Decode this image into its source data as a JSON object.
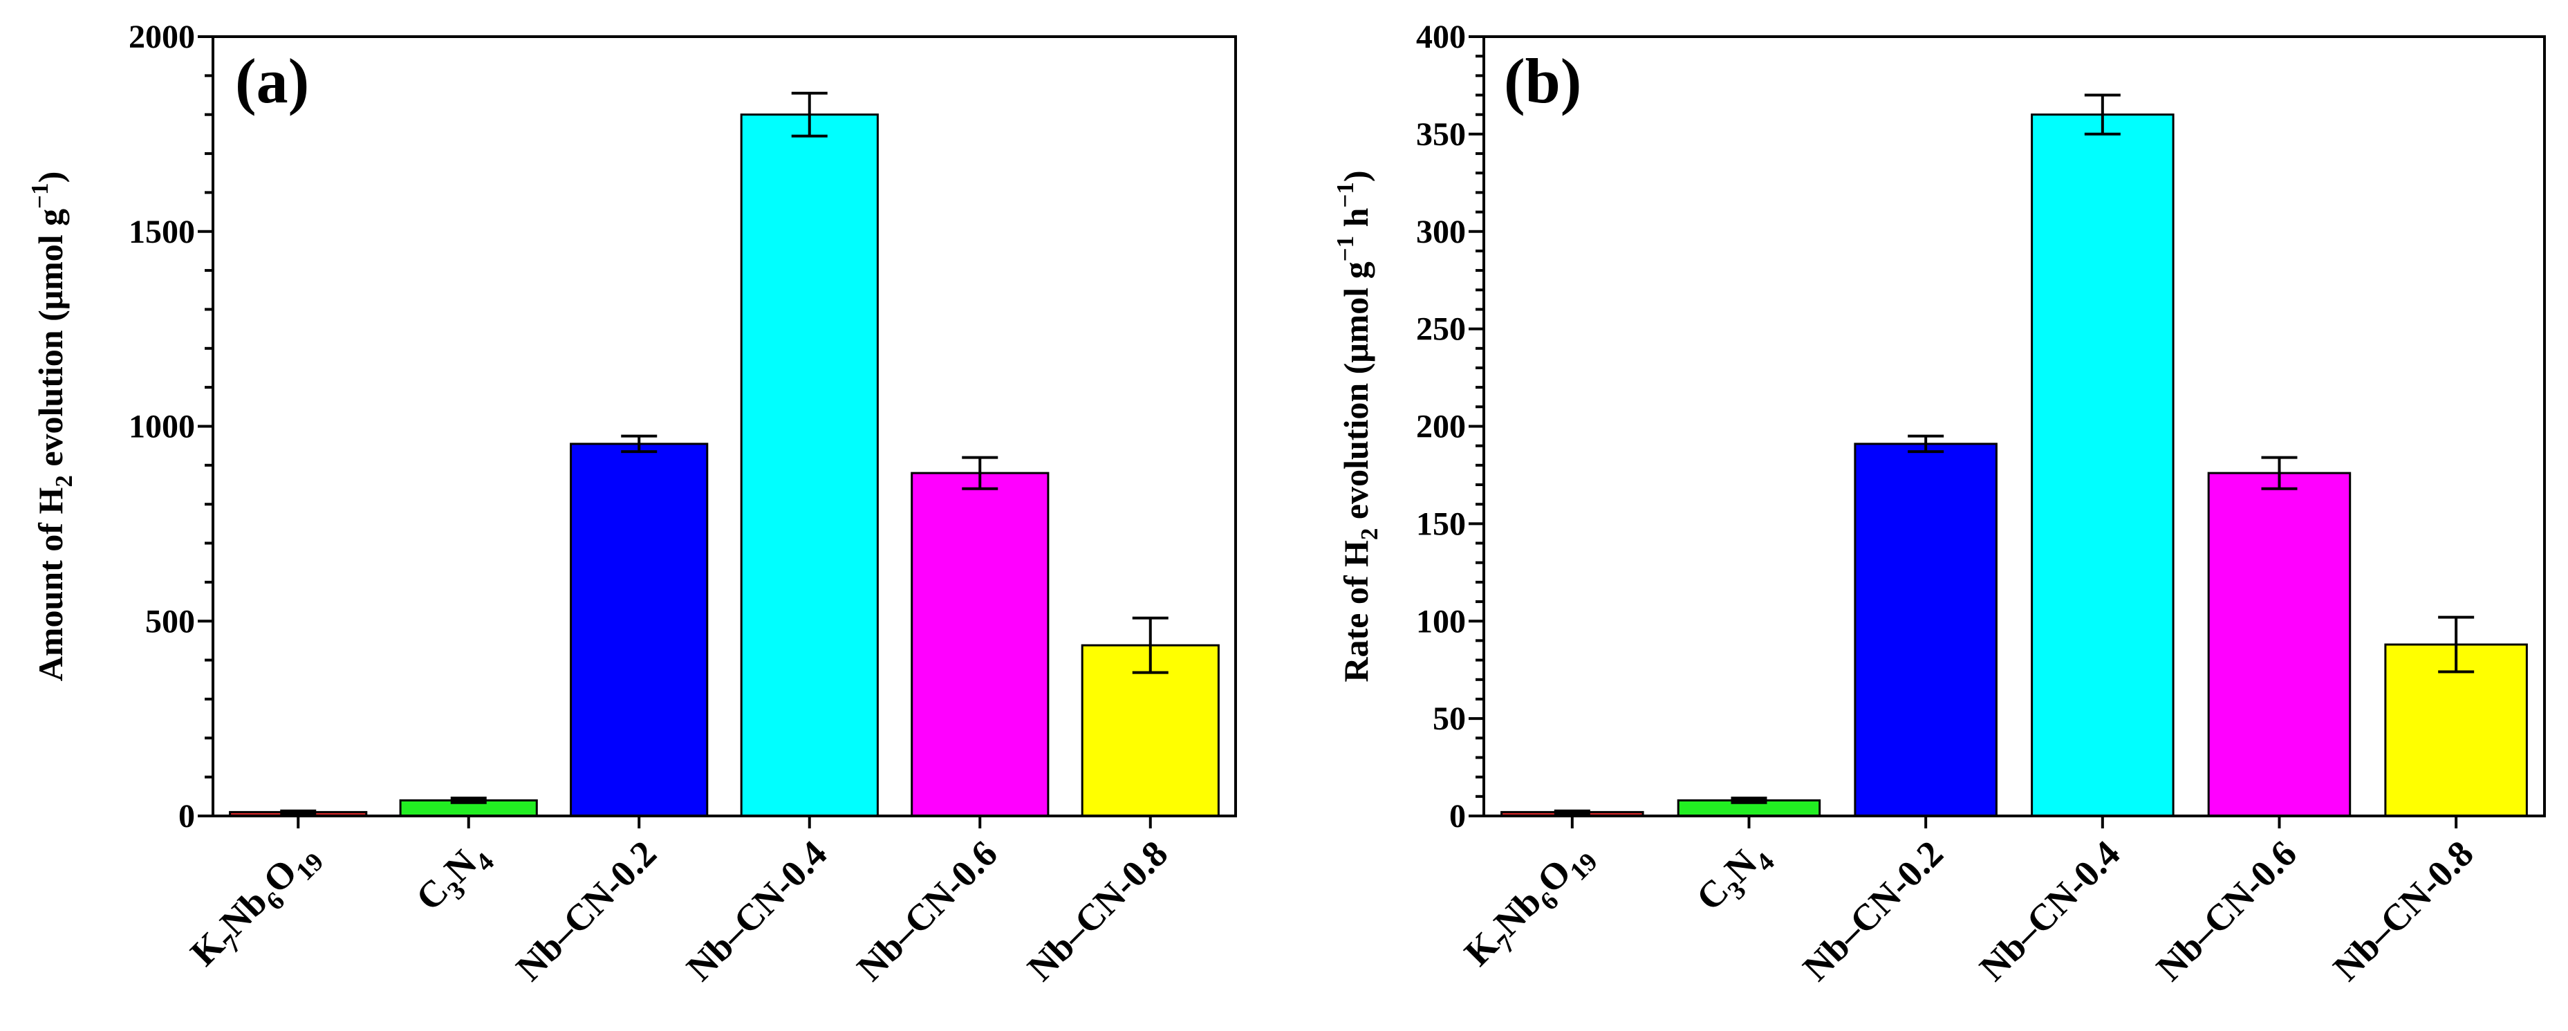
{
  "figure": {
    "background": "#ffffff",
    "panels": 2
  },
  "chart_data": [
    {
      "type": "bar",
      "panel_label": "(a)",
      "title": "",
      "categories": [
        "K7Nb6O19",
        "C3N4",
        "Nb–CN-0.2",
        "Nb–CN-0.4",
        "Nb–CN-0.6",
        "Nb–CN-0.8"
      ],
      "category_labels": [
        [
          {
            "t": "K"
          },
          {
            "t": "7",
            "sub": true
          },
          {
            "t": "Nb"
          },
          {
            "t": "6",
            "sub": true
          },
          {
            "t": "O"
          },
          {
            "t": "19",
            "sub": true
          }
        ],
        [
          {
            "t": "C"
          },
          {
            "t": "3",
            "sub": true
          },
          {
            "t": "N"
          },
          {
            "t": "4",
            "sub": true
          }
        ],
        [
          {
            "t": "Nb–CN-0.2"
          }
        ],
        [
          {
            "t": "Nb–CN-0.4"
          }
        ],
        [
          {
            "t": "Nb–CN-0.6"
          }
        ],
        [
          {
            "t": "Nb–CN-0.8"
          }
        ]
      ],
      "values": [
        10,
        40,
        955,
        1800,
        880,
        438
      ],
      "errors": [
        3,
        6,
        20,
        55,
        40,
        70
      ],
      "colors": [
        "#d62728",
        "#22ee22",
        "#0000ff",
        "#00ffff",
        "#ff00ff",
        "#ffff00"
      ],
      "xlabel": "",
      "ylabel_parts": [
        {
          "t": "Amount of H"
        },
        {
          "t": "2",
          "sub": true
        },
        {
          "t": " evolution (μmol g"
        },
        {
          "t": "−1",
          "sup": true
        },
        {
          "t": ")"
        }
      ],
      "ylim": [
        0,
        2000
      ],
      "yticks_major": [
        0,
        500,
        1000,
        1500,
        2000
      ],
      "ytick_labels": [
        "0",
        "500",
        "1000",
        "1500",
        "2000"
      ],
      "yticks_minor_step": 100,
      "grid": false,
      "legend": "none"
    },
    {
      "type": "bar",
      "panel_label": "(b)",
      "title": "",
      "categories": [
        "K7Nb6O19",
        "C3N4",
        "Nb–CN-0.2",
        "Nb–CN-0.4",
        "Nb–CN-0.6",
        "Nb–CN-0.8"
      ],
      "category_labels": [
        [
          {
            "t": "K"
          },
          {
            "t": "7",
            "sub": true
          },
          {
            "t": "Nb"
          },
          {
            "t": "6",
            "sub": true
          },
          {
            "t": "O"
          },
          {
            "t": "19",
            "sub": true
          }
        ],
        [
          {
            "t": "C"
          },
          {
            "t": "3",
            "sub": true
          },
          {
            "t": "N"
          },
          {
            "t": "4",
            "sub": true
          }
        ],
        [
          {
            "t": "Nb–CN-0.2"
          }
        ],
        [
          {
            "t": "Nb–CN-0.4"
          }
        ],
        [
          {
            "t": "Nb–CN-0.6"
          }
        ],
        [
          {
            "t": "Nb–CN-0.8"
          }
        ]
      ],
      "values": [
        2,
        8,
        191,
        360,
        176,
        88
      ],
      "errors": [
        0.6,
        1.2,
        4,
        10,
        8,
        14
      ],
      "colors": [
        "#d62728",
        "#22ee22",
        "#0000ff",
        "#00ffff",
        "#ff00ff",
        "#ffff00"
      ],
      "xlabel": "",
      "ylabel_parts": [
        {
          "t": "Rate of H"
        },
        {
          "t": "2",
          "sub": true
        },
        {
          "t": " evolution (μmol g"
        },
        {
          "t": "−1",
          "sup": true
        },
        {
          "t": " h"
        },
        {
          "t": "−1",
          "sup": true
        },
        {
          "t": ")"
        }
      ],
      "ylim": [
        0,
        400
      ],
      "yticks_major": [
        0,
        50,
        100,
        150,
        200,
        250,
        300,
        350,
        400
      ],
      "ytick_labels": [
        "0",
        "50",
        "100",
        "150",
        "200",
        "250",
        "300",
        "350",
        "400"
      ],
      "yticks_minor_step": 10,
      "grid": false,
      "legend": "none"
    }
  ]
}
